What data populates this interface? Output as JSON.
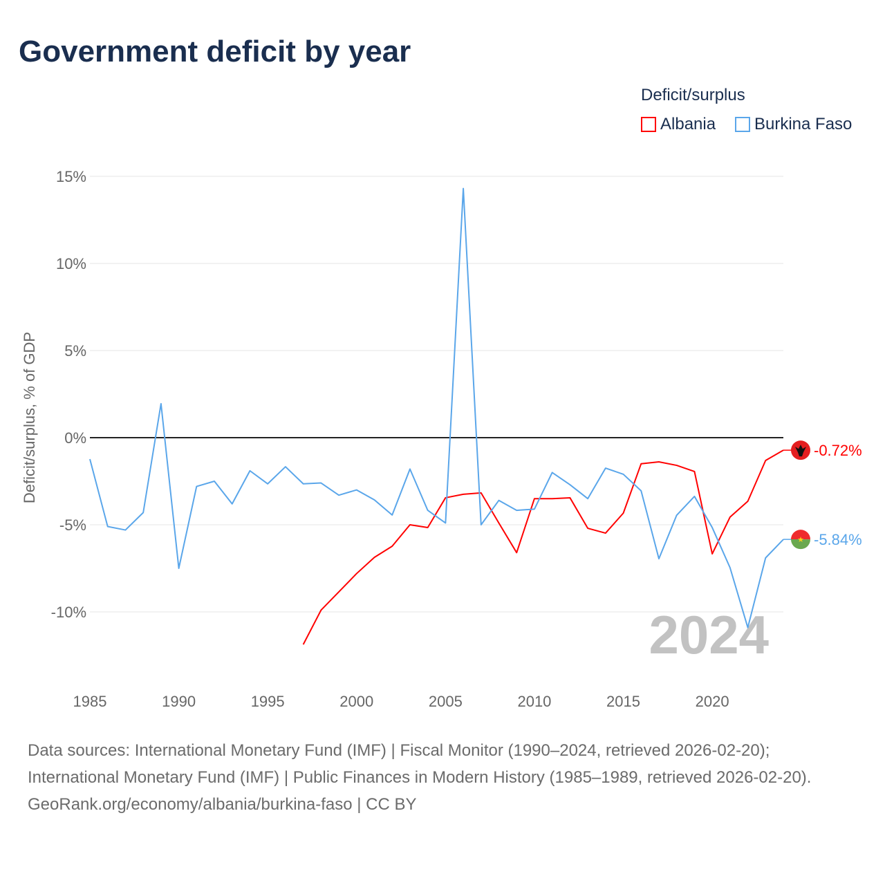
{
  "chart_data": {
    "type": "line",
    "title": "Government deficit by year",
    "ylabel": "Deficit/surplus, % of GDP",
    "xlabel": "",
    "xlim": [
      1985,
      2024
    ],
    "ylim": [
      -12.5,
      15
    ],
    "x_ticks": [
      1985,
      1990,
      1995,
      2000,
      2005,
      2010,
      2015,
      2020
    ],
    "x_tick_labels": [
      "1985",
      "1990",
      "1995",
      "2000",
      "2005",
      "2010",
      "2015",
      "2020"
    ],
    "y_ticks": [
      15,
      10,
      5,
      0,
      -5,
      -10
    ],
    "y_tick_labels": [
      "15%",
      "10%",
      "5%",
      "0%",
      "-5%",
      "-10%"
    ],
    "grid": true,
    "legend": {
      "title": "Deficit/surplus",
      "placement": "top-right"
    },
    "watermark_year": "2024",
    "series": [
      {
        "name": "Albania",
        "color": "#ff0000",
        "end_label": "-0.72%",
        "x": [
          1997,
          1998,
          1999,
          2000,
          2001,
          2002,
          2003,
          2004,
          2005,
          2006,
          2007,
          2008,
          2009,
          2010,
          2011,
          2012,
          2013,
          2014,
          2015,
          2016,
          2017,
          2018,
          2019,
          2020,
          2021,
          2022,
          2023,
          2024
        ],
        "values": [
          -11.87,
          -9.9,
          -8.85,
          -7.8,
          -6.87,
          -6.23,
          -5.0,
          -5.16,
          -3.45,
          -3.25,
          -3.17,
          -4.9,
          -6.6,
          -3.5,
          -3.5,
          -3.45,
          -5.2,
          -5.48,
          -4.33,
          -1.5,
          -1.39,
          -1.59,
          -1.94,
          -6.67,
          -4.56,
          -3.65,
          -1.31,
          -0.72
        ]
      },
      {
        "name": "Burkina Faso",
        "color": "#5aa6ea",
        "end_label": "-5.84%",
        "x": [
          1985,
          1986,
          1987,
          1988,
          1989,
          1990,
          1991,
          1992,
          1993,
          1994,
          1995,
          1996,
          1997,
          1998,
          1999,
          2000,
          2001,
          2002,
          2003,
          2004,
          2005,
          2006,
          2007,
          2008,
          2009,
          2010,
          2011,
          2012,
          2013,
          2014,
          2015,
          2016,
          2017,
          2018,
          2019,
          2020,
          2021,
          2022,
          2023,
          2024
        ],
        "values": [
          -1.23,
          -5.1,
          -5.3,
          -4.3,
          1.95,
          -7.5,
          -2.8,
          -2.5,
          -3.8,
          -1.9,
          -2.65,
          -1.67,
          -2.65,
          -2.6,
          -3.3,
          -3.0,
          -3.57,
          -4.44,
          -1.8,
          -4.17,
          -4.9,
          14.3,
          -5.0,
          -3.6,
          -4.17,
          -4.1,
          -2.0,
          -2.7,
          -3.5,
          -1.75,
          -2.1,
          -3.05,
          -6.95,
          -4.45,
          -3.37,
          -5.16,
          -7.46,
          -10.9,
          -6.9,
          -5.84
        ]
      }
    ]
  },
  "source": {
    "line1": "Data sources: International Monetary Fund (IMF) | Fiscal Monitor (1990–2024, retrieved 2026-02-20); International Monetary Fund (IMF) | Public Finances in Modern History (1985–1989, retrieved 2026-02-20).",
    "line2": "GeoRank.org/economy/albania/burkina-faso | CC BY"
  }
}
